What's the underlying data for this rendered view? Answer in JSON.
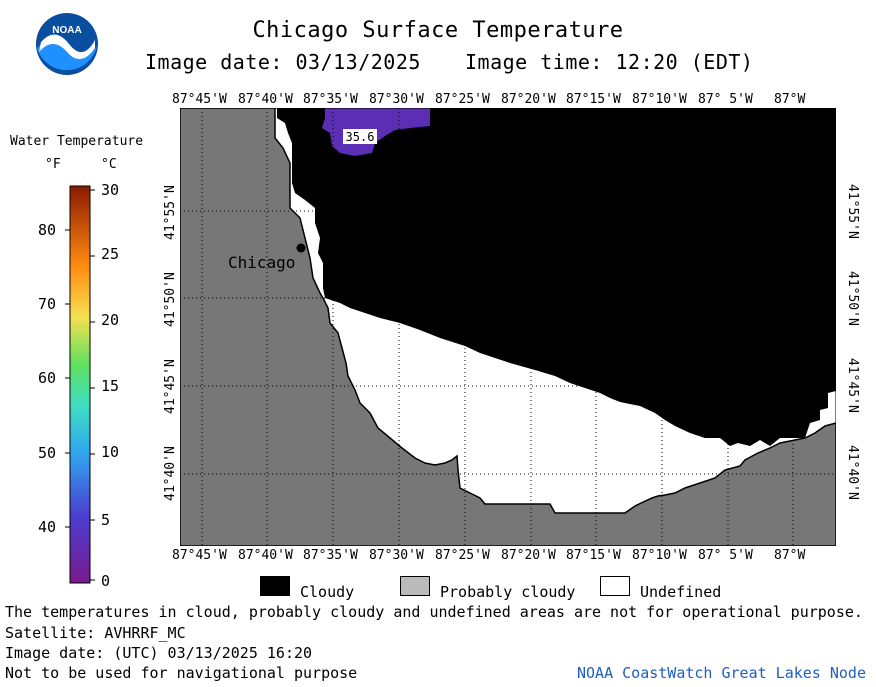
{
  "title": "Chicago Surface Temperature",
  "image_date_label": "Image date: 03/13/2025",
  "image_time_label": "Image time: 12:20 (EDT)",
  "logo_text": "NOAA",
  "colorbar": {
    "title": "Water Temperature",
    "f_unit": "°F",
    "c_unit": "°C",
    "f_ticks": [
      "80",
      "70",
      "60",
      "50",
      "40"
    ],
    "c_ticks": [
      "30",
      "25",
      "20",
      "15",
      "10",
      "5",
      "0"
    ]
  },
  "lon_labels": [
    "87°45'W",
    "87°40'W",
    "87°35'W",
    "87°30'W",
    "87°25'W",
    "87°20'W",
    "87°15'W",
    "87°10'W",
    "87° 5'W",
    "87°W"
  ],
  "lat_labels": [
    "41°55'N",
    "41°50'N",
    "41°45'N",
    "41°40'N"
  ],
  "city_label": "Chicago",
  "temp_label": "35.6",
  "legend": {
    "cloudy": "Cloudy",
    "probably_cloudy": "Probably cloudy",
    "undefined": "Undefined"
  },
  "footer": {
    "disclaimer": "The temperatures in cloud, probably cloudy and undefined areas are not for operational purpose.",
    "satellite": "Satellite: AVHRRF_MC",
    "utc_date": "Image date: (UTC) 03/13/2025  16:20",
    "nav": "Not to be used for navigational purpose",
    "credit": "NOAA CoastWatch Great Lakes Node"
  },
  "colors": {
    "land": "#777777",
    "cloudy": "#000000",
    "probably_cloudy": "#bbbbbb",
    "undefined": "#ffffff",
    "water_temp": "#5b2eb5",
    "credit": "#1f5fbf"
  }
}
